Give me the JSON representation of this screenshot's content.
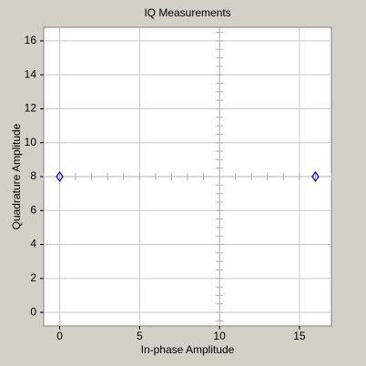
{
  "chart_data": {
    "type": "scatter",
    "title": "IQ Measurements",
    "x_label": "In-phase Amplitude",
    "y_label": "Quadrature Amplitude",
    "x": [
      0,
      16
    ],
    "values": [
      8,
      8
    ],
    "color": "#0000cc",
    "xlim": [
      -1,
      17
    ],
    "ylim": [
      -0.8,
      16.8
    ],
    "xticks": [
      0,
      5,
      10,
      15
    ],
    "yticks": [
      0,
      2,
      4,
      6,
      8,
      10,
      12,
      14,
      16
    ],
    "grid": true,
    "crosshair": {
      "x": 10,
      "y": 8,
      "x_step": 1,
      "y_step": 0.5
    }
  }
}
